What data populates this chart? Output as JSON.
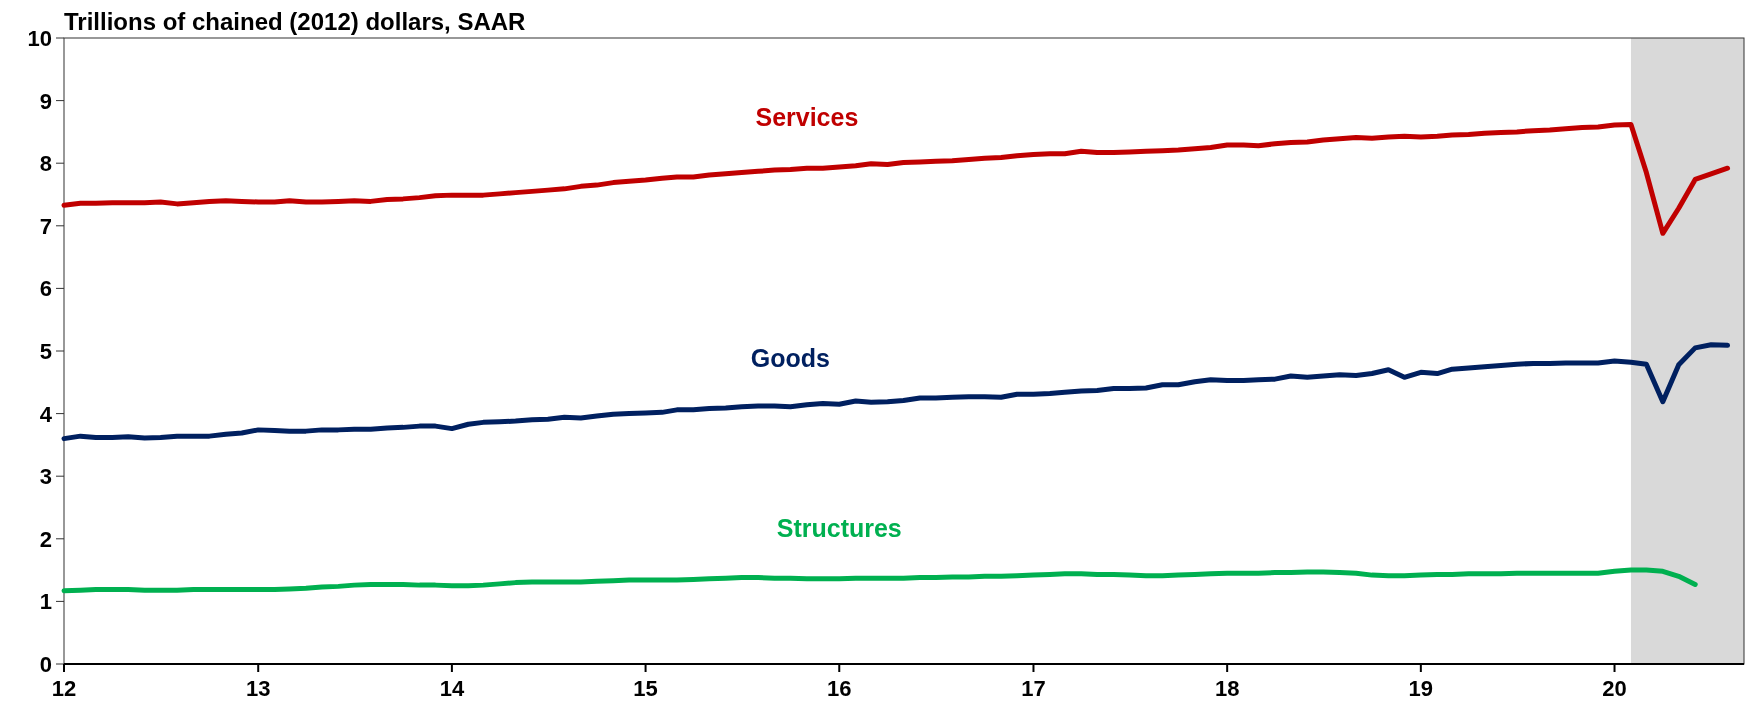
{
  "chart_data": {
    "type": "line",
    "title": "Trillions of chained (2012) dollars, SAAR",
    "x": [
      "2012-01",
      "2012-02",
      "2012-03",
      "2012-04",
      "2012-05",
      "2012-06",
      "2012-07",
      "2012-08",
      "2012-09",
      "2012-10",
      "2012-11",
      "2012-12",
      "2013-01",
      "2013-02",
      "2013-03",
      "2013-04",
      "2013-05",
      "2013-06",
      "2013-07",
      "2013-08",
      "2013-09",
      "2013-10",
      "2013-11",
      "2013-12",
      "2014-01",
      "2014-02",
      "2014-03",
      "2014-04",
      "2014-05",
      "2014-06",
      "2014-07",
      "2014-08",
      "2014-09",
      "2014-10",
      "2014-11",
      "2014-12",
      "2015-01",
      "2015-02",
      "2015-03",
      "2015-04",
      "2015-05",
      "2015-06",
      "2015-07",
      "2015-08",
      "2015-09",
      "2015-10",
      "2015-11",
      "2015-12",
      "2016-01",
      "2016-02",
      "2016-03",
      "2016-04",
      "2016-05",
      "2016-06",
      "2016-07",
      "2016-08",
      "2016-09",
      "2016-10",
      "2016-11",
      "2016-12",
      "2017-01",
      "2017-02",
      "2017-03",
      "2017-04",
      "2017-05",
      "2017-06",
      "2017-07",
      "2017-08",
      "2017-09",
      "2017-10",
      "2017-11",
      "2017-12",
      "2018-01",
      "2018-02",
      "2018-03",
      "2018-04",
      "2018-05",
      "2018-06",
      "2018-07",
      "2018-08",
      "2018-09",
      "2018-10",
      "2018-11",
      "2018-12",
      "2019-01",
      "2019-02",
      "2019-03",
      "2019-04",
      "2019-05",
      "2019-06",
      "2019-07",
      "2019-08",
      "2019-09",
      "2019-10",
      "2019-11",
      "2019-12",
      "2020-01",
      "2020-02",
      "2020-03",
      "2020-04",
      "2020-05",
      "2020-06",
      "2020-07",
      "2020-08"
    ],
    "series": [
      {
        "name": "Services",
        "color": "#c00000",
        "values": [
          7.33,
          7.36,
          7.36,
          7.37,
          7.37,
          7.37,
          7.38,
          7.35,
          7.37,
          7.39,
          7.4,
          7.39,
          7.38,
          7.38,
          7.4,
          7.38,
          7.38,
          7.39,
          7.4,
          7.39,
          7.42,
          7.43,
          7.45,
          7.48,
          7.49,
          7.49,
          7.49,
          7.51,
          7.53,
          7.55,
          7.57,
          7.59,
          7.63,
          7.65,
          7.69,
          7.71,
          7.73,
          7.76,
          7.78,
          7.78,
          7.81,
          7.83,
          7.85,
          7.87,
          7.89,
          7.9,
          7.92,
          7.92,
          7.94,
          7.96,
          7.99,
          7.98,
          8.01,
          8.02,
          8.03,
          8.04,
          8.06,
          8.08,
          8.09,
          8.12,
          8.14,
          8.15,
          8.15,
          8.19,
          8.17,
          8.17,
          8.18,
          8.19,
          8.2,
          8.21,
          8.23,
          8.25,
          8.29,
          8.29,
          8.28,
          8.31,
          8.33,
          8.34,
          8.37,
          8.39,
          8.41,
          8.4,
          8.42,
          8.43,
          8.42,
          8.43,
          8.45,
          8.46,
          8.48,
          8.49,
          8.5,
          8.52,
          8.53,
          8.55,
          8.57,
          8.58,
          8.61,
          8.62,
          7.85,
          6.88,
          7.28,
          7.74,
          7.83,
          7.92
        ]
      },
      {
        "name": "Goods",
        "color": "#002060",
        "values": [
          3.6,
          3.64,
          3.62,
          3.62,
          3.63,
          3.61,
          3.62,
          3.64,
          3.64,
          3.64,
          3.67,
          3.69,
          3.74,
          3.73,
          3.72,
          3.72,
          3.74,
          3.74,
          3.75,
          3.75,
          3.77,
          3.78,
          3.8,
          3.8,
          3.76,
          3.83,
          3.86,
          3.87,
          3.88,
          3.9,
          3.91,
          3.94,
          3.93,
          3.96,
          3.99,
          4.0,
          4.01,
          4.02,
          4.06,
          4.06,
          4.08,
          4.09,
          4.11,
          4.12,
          4.12,
          4.11,
          4.14,
          4.16,
          4.15,
          4.2,
          4.18,
          4.19,
          4.21,
          4.25,
          4.25,
          4.26,
          4.27,
          4.27,
          4.26,
          4.31,
          4.31,
          4.32,
          4.34,
          4.36,
          4.37,
          4.4,
          4.4,
          4.41,
          4.46,
          4.46,
          4.51,
          4.54,
          4.53,
          4.53,
          4.54,
          4.55,
          4.6,
          4.58,
          4.6,
          4.62,
          4.61,
          4.64,
          4.7,
          4.58,
          4.66,
          4.64,
          4.71,
          4.73,
          4.75,
          4.77,
          4.79,
          4.8,
          4.8,
          4.81,
          4.81,
          4.81,
          4.84,
          4.82,
          4.79,
          4.19,
          4.78,
          5.05,
          5.1,
          5.09
        ]
      },
      {
        "name": "Structures",
        "color": "#00b050",
        "x": [
          "2012-01",
          "2012-02",
          "2012-03",
          "2012-04",
          "2012-05",
          "2012-06",
          "2012-07",
          "2012-08",
          "2012-09",
          "2012-10",
          "2012-11",
          "2012-12",
          "2013-01",
          "2013-02",
          "2013-03",
          "2013-04",
          "2013-05",
          "2013-06",
          "2013-07",
          "2013-08",
          "2013-09",
          "2013-10",
          "2013-11",
          "2013-12",
          "2014-01",
          "2014-02",
          "2014-03",
          "2014-04",
          "2014-05",
          "2014-06",
          "2014-07",
          "2014-08",
          "2014-09",
          "2014-10",
          "2014-11",
          "2014-12",
          "2015-01",
          "2015-02",
          "2015-03",
          "2015-04",
          "2015-05",
          "2015-06",
          "2015-07",
          "2015-08",
          "2015-09",
          "2015-10",
          "2015-11",
          "2015-12",
          "2016-01",
          "2016-02",
          "2016-03",
          "2016-04",
          "2016-05",
          "2016-06",
          "2016-07",
          "2016-08",
          "2016-09",
          "2016-10",
          "2016-11",
          "2016-12",
          "2017-01",
          "2017-02",
          "2017-03",
          "2017-04",
          "2017-05",
          "2017-06",
          "2017-07",
          "2017-08",
          "2017-09",
          "2017-10",
          "2017-11",
          "2017-12",
          "2018-01",
          "2018-02",
          "2018-03",
          "2018-04",
          "2018-05",
          "2018-06",
          "2018-07",
          "2018-08",
          "2018-09",
          "2018-10",
          "2018-11",
          "2018-12",
          "2019-01",
          "2019-02",
          "2019-03",
          "2019-04",
          "2019-05",
          "2019-06",
          "2019-07",
          "2019-08",
          "2019-09",
          "2019-10",
          "2019-11",
          "2019-12",
          "2020-01",
          "2020-02",
          "2020-03",
          "2020-04",
          "2020-05",
          "2020-06"
        ],
        "values": [
          1.17,
          1.18,
          1.19,
          1.19,
          1.19,
          1.18,
          1.18,
          1.18,
          1.19,
          1.19,
          1.19,
          1.19,
          1.19,
          1.19,
          1.2,
          1.21,
          1.23,
          1.24,
          1.26,
          1.27,
          1.27,
          1.27,
          1.26,
          1.26,
          1.25,
          1.25,
          1.26,
          1.28,
          1.3,
          1.31,
          1.31,
          1.31,
          1.31,
          1.32,
          1.33,
          1.34,
          1.34,
          1.34,
          1.34,
          1.35,
          1.36,
          1.37,
          1.38,
          1.38,
          1.37,
          1.37,
          1.36,
          1.36,
          1.36,
          1.37,
          1.37,
          1.37,
          1.37,
          1.38,
          1.38,
          1.39,
          1.39,
          1.4,
          1.4,
          1.41,
          1.42,
          1.43,
          1.44,
          1.44,
          1.43,
          1.43,
          1.42,
          1.41,
          1.41,
          1.42,
          1.43,
          1.44,
          1.45,
          1.45,
          1.45,
          1.46,
          1.46,
          1.47,
          1.47,
          1.46,
          1.45,
          1.42,
          1.41,
          1.41,
          1.42,
          1.43,
          1.43,
          1.44,
          1.44,
          1.44,
          1.45,
          1.45,
          1.45,
          1.45,
          1.45,
          1.45,
          1.48,
          1.5,
          1.5,
          1.48,
          1.4,
          1.27
        ]
      }
    ],
    "xlim": [
      "2012-01",
      "2020-09"
    ],
    "xticks": [
      {
        "value": "2012-01",
        "label": "12"
      },
      {
        "value": "2013-01",
        "label": "13"
      },
      {
        "value": "2014-01",
        "label": "14"
      },
      {
        "value": "2015-01",
        "label": "15"
      },
      {
        "value": "2016-01",
        "label": "16"
      },
      {
        "value": "2017-01",
        "label": "17"
      },
      {
        "value": "2018-01",
        "label": "18"
      },
      {
        "value": "2019-01",
        "label": "19"
      },
      {
        "value": "2020-01",
        "label": "20"
      }
    ],
    "ylim": [
      0,
      10
    ],
    "yticks": [
      0,
      1,
      2,
      3,
      4,
      5,
      6,
      7,
      8,
      9,
      10
    ],
    "bands": [
      {
        "axis": "x",
        "from": "2020-02",
        "to": "2020-09",
        "color": "#d9d9d9"
      }
    ],
    "grid": false,
    "marker": "none",
    "line_style": "solid"
  }
}
